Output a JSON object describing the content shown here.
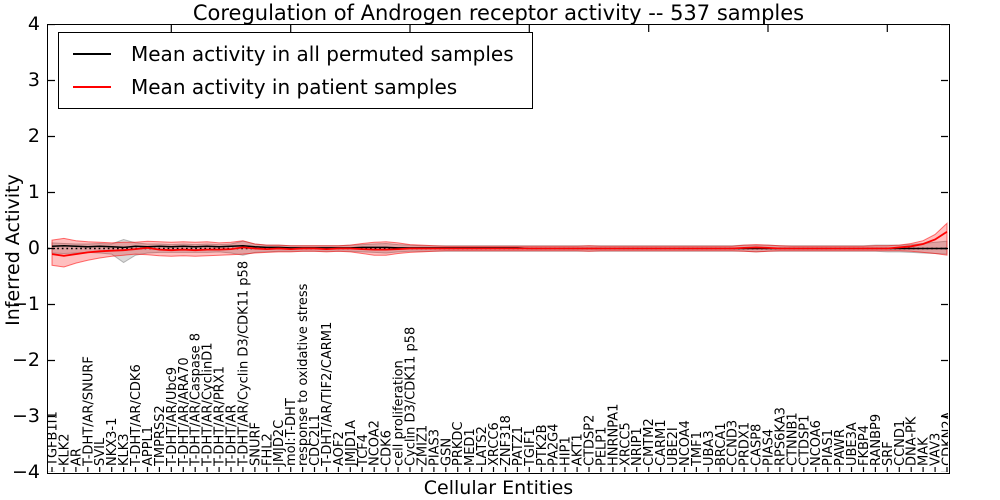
{
  "axes": {
    "xlabel": "Cellular Entities",
    "ylabel": "Inferred Activity",
    "yticks": [
      4,
      3,
      2,
      1,
      0,
      -1,
      -2,
      -3,
      -4
    ],
    "ylim": [
      -4,
      4
    ]
  },
  "legend": {
    "items": [
      {
        "label": "Mean activity in all permuted samples",
        "color": "#000000"
      },
      {
        "label": "Mean activity in patient samples",
        "color": "#ff0000"
      }
    ]
  },
  "chart_data": {
    "type": "line",
    "title": "Coregulation of Androgen receptor activity -- 537 samples",
    "xlabel": "Cellular Entities",
    "ylabel": "Inferred Activity",
    "ylim": [
      -4,
      4
    ],
    "yticks": [
      4,
      3,
      2,
      1,
      0,
      -1,
      -2,
      -3,
      -4
    ],
    "grid": false,
    "legend_position": "upper left",
    "zero_line_style": "dotted",
    "categories": [
      "TGFB1I1",
      "KLK2",
      "AR",
      "T-DHT/AR/SNURF",
      "SVIL",
      "NKX3-1",
      "KLK3",
      "T-DHT/AR/CDK6",
      "APPL1",
      "TMPRSS2",
      "T-DHT/AR/Ubc9",
      "T-DHT/AR/ARA70",
      "T-DHT/AR/Caspase 8",
      "T-DHT/AR/CyclinD1",
      "T-DHT/AR/PRX1",
      "T-DHT/AR",
      "T-DHT/AR/Cyclin D3/CDK11 p58",
      "SNURF",
      "FHL2",
      "JMJD2C",
      "mol:T-DHT",
      "response to oxidative stress",
      "CDC2L1",
      "T-DHT/AR/TIF2/CARM1",
      "AOF2",
      "JMJD1A",
      "TCF4",
      "NCOA2",
      "CDK6",
      "cell proliferation",
      "Cyclin D3/CDK11 p58",
      "ZMIZ1",
      "PIAS3",
      "GSN",
      "PRKDC",
      "MED1",
      "LATS2",
      "XRCC6",
      "ZNF318",
      "PATZ1",
      "TGIF1",
      "PTK2B",
      "PA2G4",
      "HIP1",
      "AKT1",
      "CTDSP2",
      "PELP1",
      "HNRNPA1",
      "XRCC5",
      "NRIP1",
      "CMTM2",
      "CARM1",
      "UBE2I",
      "NCOA4",
      "TMF1",
      "UBA3",
      "BRCA1",
      "CCND3",
      "PRDX1",
      "CASP8",
      "PIAS4",
      "RPS6KA3",
      "CTNNB1",
      "CTDSP1",
      "NCOA6",
      "PIAS1",
      "PAWR",
      "UBE3A",
      "FKBP4",
      "RANBP9",
      "SRF",
      "CCND1",
      "DNA-PK",
      "MAK",
      "VAV3",
      "CDKN2A"
    ],
    "series": [
      {
        "name": "Mean activity in all permuted samples",
        "color": "#000000",
        "style": "solid",
        "values": [
          0.04,
          0.05,
          0.04,
          0.03,
          0.04,
          0.03,
          0.02,
          0.04,
          0.03,
          0.04,
          0.03,
          0.04,
          0.03,
          0.04,
          0.03,
          0.04,
          0.05,
          0.03,
          0.02,
          0.02,
          0.01,
          0.01,
          0.01,
          0.01,
          0.01,
          0.01,
          0.02,
          0.02,
          0.02,
          0.01,
          0.01,
          0.01,
          0.01,
          0.01,
          0.01,
          0.01,
          0.01,
          0.01,
          0.01,
          0.01,
          0,
          0,
          0,
          0,
          0,
          0,
          0,
          0,
          0,
          0,
          0,
          0,
          0,
          0,
          0,
          0,
          0,
          0,
          0,
          0,
          0,
          0,
          0,
          0,
          0,
          0,
          0,
          0,
          0,
          0,
          0,
          0,
          0,
          0,
          0,
          0
        ]
      },
      {
        "name": "Mean activity in patient samples",
        "color": "#ff0000",
        "style": "solid",
        "values": [
          -0.1,
          -0.13,
          -0.1,
          -0.07,
          -0.05,
          -0.04,
          -0.03,
          -0.01,
          0.01,
          -0.02,
          -0.03,
          -0.02,
          -0.03,
          -0.02,
          -0.02,
          -0.01,
          0.02,
          0,
          -0.01,
          0,
          -0.01,
          0,
          0,
          -0.01,
          0,
          0,
          -0.01,
          -0.02,
          -0.02,
          -0.01,
          0,
          0,
          0,
          0,
          0,
          0,
          0,
          0,
          0,
          0,
          0,
          0,
          0,
          0,
          0,
          0,
          0,
          0,
          0,
          0,
          0,
          0,
          0,
          0,
          0,
          0,
          0,
          0,
          0.01,
          0.02,
          0.01,
          0,
          0,
          0,
          0,
          0,
          0,
          0,
          0,
          0,
          0,
          0.02,
          0.04,
          0.08,
          0.16,
          0.3
        ]
      }
    ],
    "bands": [
      {
        "name": "permuted samples range",
        "color": "#808080",
        "fill_opacity": 0.3,
        "upper": [
          0.1,
          0.09,
          0.08,
          0.08,
          0.09,
          0.08,
          0.16,
          0.1,
          0.08,
          0.08,
          0.07,
          0.08,
          0.07,
          0.08,
          0.07,
          0.08,
          0.13,
          0.08,
          0.06,
          0.06,
          0.05,
          0.05,
          0.05,
          0.05,
          0.05,
          0.06,
          0.07,
          0.08,
          0.09,
          0.07,
          0.06,
          0.05,
          0.05,
          0.05,
          0.05,
          0.05,
          0.05,
          0.05,
          0.05,
          0.05,
          0.05,
          0.05,
          0.05,
          0.05,
          0.05,
          0.05,
          0.05,
          0.05,
          0.05,
          0.05,
          0.05,
          0.05,
          0.05,
          0.05,
          0.05,
          0.05,
          0.05,
          0.05,
          0.06,
          0.06,
          0.06,
          0.05,
          0.05,
          0.05,
          0.05,
          0.05,
          0.05,
          0.05,
          0.05,
          0.06,
          0.06,
          0.06,
          0.07,
          0.09,
          0.11,
          0.13
        ],
        "lower": [
          -0.08,
          -0.09,
          -0.08,
          -0.07,
          -0.08,
          -0.1,
          -0.25,
          -0.12,
          -0.08,
          -0.07,
          -0.07,
          -0.07,
          -0.07,
          -0.07,
          -0.06,
          -0.08,
          -0.12,
          -0.07,
          -0.06,
          -0.05,
          -0.05,
          -0.05,
          -0.05,
          -0.05,
          -0.05,
          -0.05,
          -0.06,
          -0.07,
          -0.08,
          -0.06,
          -0.05,
          -0.05,
          -0.05,
          -0.05,
          -0.05,
          -0.05,
          -0.05,
          -0.05,
          -0.05,
          -0.05,
          -0.05,
          -0.05,
          -0.05,
          -0.05,
          -0.05,
          -0.05,
          -0.05,
          -0.05,
          -0.05,
          -0.05,
          -0.05,
          -0.05,
          -0.05,
          -0.05,
          -0.05,
          -0.05,
          -0.05,
          -0.05,
          -0.05,
          -0.06,
          -0.05,
          -0.05,
          -0.05,
          -0.05,
          -0.05,
          -0.05,
          -0.05,
          -0.05,
          -0.05,
          -0.05,
          -0.06,
          -0.06,
          -0.07,
          -0.08,
          -0.09,
          -0.1
        ]
      },
      {
        "name": "patient samples range",
        "color": "#ff0000",
        "fill_opacity": 0.25,
        "upper": [
          0.15,
          0.18,
          0.14,
          0.12,
          0.11,
          0.1,
          0.11,
          0.11,
          0.13,
          0.12,
          0.11,
          0.12,
          0.11,
          0.12,
          0.1,
          0.11,
          0.14,
          0.08,
          0.06,
          0.06,
          0.05,
          0.05,
          0.05,
          0.05,
          0.05,
          0.06,
          0.09,
          0.11,
          0.12,
          0.1,
          0.07,
          0.06,
          0.05,
          0.04,
          0.04,
          0.04,
          0.04,
          0.04,
          0.04,
          0.04,
          0.04,
          0.04,
          0.04,
          0.04,
          0.04,
          0.05,
          0.04,
          0.04,
          0.04,
          0.04,
          0.04,
          0.04,
          0.04,
          0.04,
          0.04,
          0.04,
          0.04,
          0.04,
          0.06,
          0.07,
          0.06,
          0.05,
          0.04,
          0.04,
          0.04,
          0.04,
          0.04,
          0.04,
          0.04,
          0.05,
          0.05,
          0.06,
          0.09,
          0.14,
          0.25,
          0.45
        ],
        "lower": [
          -0.3,
          -0.33,
          -0.26,
          -0.21,
          -0.17,
          -0.14,
          -0.12,
          -0.1,
          -0.11,
          -0.13,
          -0.14,
          -0.13,
          -0.14,
          -0.13,
          -0.12,
          -0.11,
          -0.1,
          -0.08,
          -0.07,
          -0.06,
          -0.06,
          -0.05,
          -0.05,
          -0.06,
          -0.05,
          -0.06,
          -0.09,
          -0.12,
          -0.12,
          -0.09,
          -0.07,
          -0.06,
          -0.05,
          -0.04,
          -0.04,
          -0.04,
          -0.04,
          -0.04,
          -0.04,
          -0.04,
          -0.04,
          -0.04,
          -0.04,
          -0.04,
          -0.04,
          -0.05,
          -0.04,
          -0.04,
          -0.04,
          -0.04,
          -0.04,
          -0.04,
          -0.04,
          -0.04,
          -0.04,
          -0.04,
          -0.04,
          -0.04,
          -0.05,
          -0.06,
          -0.05,
          -0.04,
          -0.04,
          -0.04,
          -0.04,
          -0.04,
          -0.04,
          -0.04,
          -0.04,
          -0.04,
          -0.04,
          -0.04,
          -0.05,
          -0.07,
          -0.09,
          -0.12
        ]
      }
    ]
  }
}
